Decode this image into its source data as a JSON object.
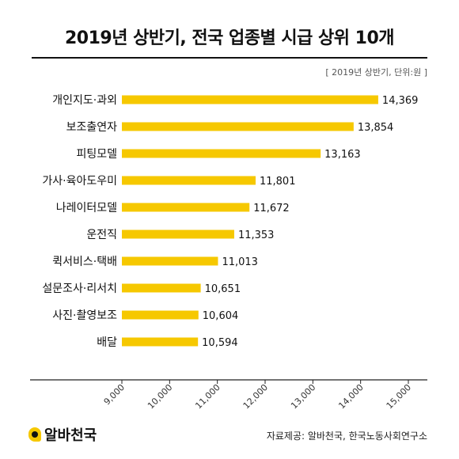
{
  "title": "2019년 상반기, 전국 업종별 시급 상위 10개",
  "subtitle": "[ 2019년 상반기, 단위:원 ]",
  "footer": {
    "logo_text": "알바천국",
    "source": "자료제공: 알바천국, 한국노동사회연구소"
  },
  "colors": {
    "bar": "#F6C800",
    "axis": "#222222",
    "text": "#111111"
  },
  "chart_data": {
    "type": "bar",
    "orientation": "horizontal",
    "categories": [
      "개인지도·과외",
      "보조출연자",
      "피팅모델",
      "가사·육아도우미",
      "나레이터모델",
      "운전직",
      "퀵서비스·택배",
      "설문조사·리서치",
      "사진·촬영보조",
      "배달"
    ],
    "values": [
      14369,
      13854,
      13163,
      11801,
      11672,
      11353,
      11013,
      10651,
      10604,
      10594
    ],
    "value_labels": [
      "14,369",
      "13,854",
      "13,163",
      "11,801",
      "11,672",
      "11,353",
      "11,013",
      "10,651",
      "10,604",
      "10,594"
    ],
    "xlim": [
      9000,
      15000
    ],
    "xticks": [
      9000,
      10000,
      11000,
      12000,
      13000,
      14000,
      15000
    ],
    "xtick_labels": [
      "9,000",
      "10,000",
      "11,000",
      "12,000",
      "13,000",
      "14,000",
      "15,000"
    ],
    "grid": false,
    "legend": "none"
  }
}
